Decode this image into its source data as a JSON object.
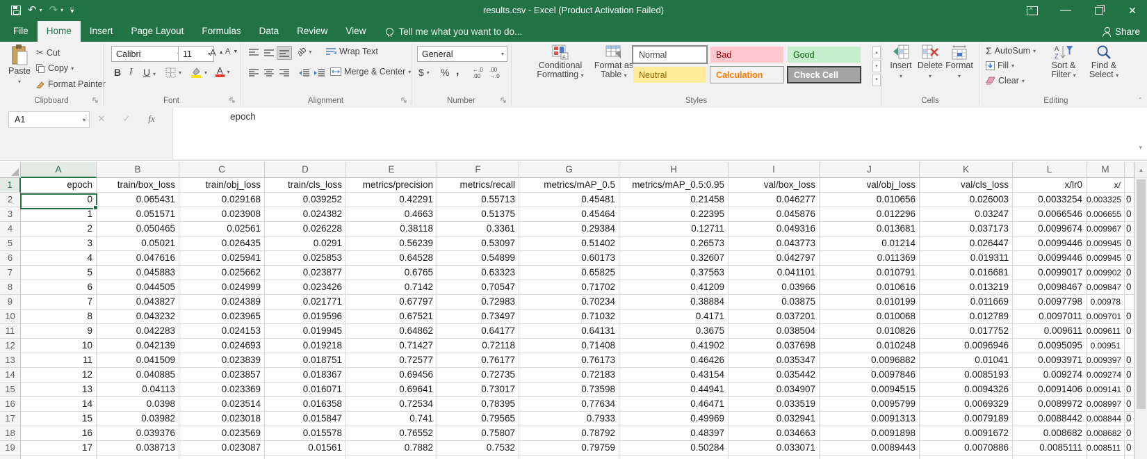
{
  "titlebar": {
    "title": "results.csv - Excel (Product Activation Failed)"
  },
  "tabs": [
    "File",
    "Home",
    "Insert",
    "Page Layout",
    "Formulas",
    "Data",
    "Review",
    "View"
  ],
  "active_tab": "Home",
  "tell_me": "Tell me what you want to do...",
  "share_label": "Share",
  "ribbon": {
    "clipboard": {
      "label": "Clipboard",
      "paste": "Paste",
      "cut": "Cut",
      "copy": "Copy",
      "format_painter": "Format Painter"
    },
    "font": {
      "label": "Font",
      "family": "Calibri",
      "size": "11",
      "bold": "B",
      "italic": "I",
      "underline": "U"
    },
    "alignment": {
      "label": "Alignment",
      "wrap_text": "Wrap Text",
      "merge_center": "Merge & Center"
    },
    "number": {
      "label": "Number",
      "format": "General",
      "currency": "$",
      "percent": "%",
      "comma": ","
    },
    "styles": {
      "label": "Styles",
      "conditional_line1": "Conditional",
      "conditional_line2": "Formatting",
      "format_table_line1": "Format as",
      "format_table_line2": "Table",
      "gallery": [
        {
          "label": "Normal",
          "bg": "#ffffff",
          "fg": "#444444",
          "border": "#8a8a8a",
          "bold": false
        },
        {
          "label": "Bad",
          "bg": "#FFC7CE",
          "fg": "#9C0006",
          "border": "#f1f1f1",
          "bold": false
        },
        {
          "label": "Good",
          "bg": "#C6EFCE",
          "fg": "#006100",
          "border": "#f1f1f1",
          "bold": false
        },
        {
          "label": "Neutral",
          "bg": "#FFEB9C",
          "fg": "#9C6500",
          "border": "#f1f1f1",
          "bold": false
        },
        {
          "label": "Calculation",
          "bg": "#F2F2F2",
          "fg": "#FA7D00",
          "border": "#9a9a9a",
          "bold": true
        },
        {
          "label": "Check Cell",
          "bg": "#A5A5A5",
          "fg": "#FFFFFF",
          "border": "#3f3f3f",
          "bold": true
        }
      ]
    },
    "cells": {
      "label": "Cells",
      "insert": "Insert",
      "delete": "Delete",
      "format": "Format"
    },
    "editing": {
      "label": "Editing",
      "autosum": "AutoSum",
      "fill": "Fill",
      "clear": "Clear",
      "sort_line1": "Sort &",
      "sort_line2": "Filter",
      "find_line1": "Find &",
      "find_line2": "Select"
    }
  },
  "formula_bar": {
    "name_box": "A1",
    "content": "epoch"
  },
  "colors": {
    "excel_green": "#217346"
  },
  "sheet": {
    "selected_cell": "A1",
    "col_letters": [
      "A",
      "B",
      "C",
      "D",
      "E",
      "F",
      "G",
      "H",
      "I",
      "J",
      "K",
      "L",
      "M"
    ],
    "header_row": [
      "epoch",
      "train/box_loss",
      "train/obj_loss",
      "train/cls_loss",
      "metrics/precision",
      "metrics/recall",
      "metrics/mAP_0.5",
      "metrics/mAP_0.5:0.95",
      "val/box_loss",
      "val/obj_loss",
      "val/cls_loss",
      "x/lr0",
      "x/"
    ],
    "rows": [
      [
        "0",
        "0.065431",
        "0.029168",
        "0.039252",
        "0.42291",
        "0.55713",
        "0.45481",
        "0.21458",
        "0.046277",
        "0.010656",
        "0.026003",
        "0.0033254",
        "0.003325",
        "0"
      ],
      [
        "1",
        "0.051571",
        "0.023908",
        "0.024382",
        "0.4663",
        "0.51375",
        "0.45464",
        "0.22395",
        "0.045876",
        "0.012296",
        "0.03247",
        "0.0066546",
        "0.006655",
        "0"
      ],
      [
        "2",
        "0.050465",
        "0.02561",
        "0.026228",
        "0.38118",
        "0.3361",
        "0.29384",
        "0.12711",
        "0.049316",
        "0.013681",
        "0.037173",
        "0.0099674",
        "0.009967",
        "0"
      ],
      [
        "3",
        "0.05021",
        "0.026435",
        "0.0291",
        "0.56239",
        "0.53097",
        "0.51402",
        "0.26573",
        "0.043773",
        "0.01214",
        "0.026447",
        "0.0099446",
        "0.009945",
        "0"
      ],
      [
        "4",
        "0.047616",
        "0.025941",
        "0.025853",
        "0.64528",
        "0.54899",
        "0.60173",
        "0.32607",
        "0.042797",
        "0.011369",
        "0.019311",
        "0.0099446",
        "0.009945",
        "0"
      ],
      [
        "5",
        "0.045883",
        "0.025662",
        "0.023877",
        "0.6765",
        "0.63323",
        "0.65825",
        "0.37563",
        "0.041101",
        "0.010791",
        "0.016681",
        "0.0099017",
        "0.009902",
        "0"
      ],
      [
        "6",
        "0.044505",
        "0.024999",
        "0.023426",
        "0.7142",
        "0.70547",
        "0.71702",
        "0.41209",
        "0.03966",
        "0.010616",
        "0.013219",
        "0.0098467",
        "0.009847",
        "0"
      ],
      [
        "7",
        "0.043827",
        "0.024389",
        "0.021771",
        "0.67797",
        "0.72983",
        "0.70234",
        "0.38884",
        "0.03875",
        "0.010199",
        "0.011669",
        "0.0097798",
        "0.00978",
        ""
      ],
      [
        "8",
        "0.043232",
        "0.023965",
        "0.019596",
        "0.67521",
        "0.73497",
        "0.71032",
        "0.4171",
        "0.037201",
        "0.010068",
        "0.012789",
        "0.0097011",
        "0.009701",
        "0"
      ],
      [
        "9",
        "0.042283",
        "0.024153",
        "0.019945",
        "0.64862",
        "0.64177",
        "0.64131",
        "0.3675",
        "0.038504",
        "0.010826",
        "0.017752",
        "0.009611",
        "0.009611",
        "0"
      ],
      [
        "10",
        "0.042139",
        "0.024693",
        "0.019218",
        "0.71427",
        "0.72118",
        "0.71408",
        "0.41902",
        "0.037698",
        "0.010248",
        "0.0096946",
        "0.0095095",
        "0.00951",
        ""
      ],
      [
        "11",
        "0.041509",
        "0.023839",
        "0.018751",
        "0.72577",
        "0.76177",
        "0.76173",
        "0.46426",
        "0.035347",
        "0.0096882",
        "0.01041",
        "0.0093971",
        "0.009397",
        "0"
      ],
      [
        "12",
        "0.040885",
        "0.023857",
        "0.018367",
        "0.69456",
        "0.72735",
        "0.72183",
        "0.43154",
        "0.035442",
        "0.0097846",
        "0.0085193",
        "0.009274",
        "0.009274",
        "0"
      ],
      [
        "13",
        "0.04113",
        "0.023369",
        "0.016071",
        "0.69641",
        "0.73017",
        "0.73598",
        "0.44941",
        "0.034907",
        "0.0094515",
        "0.0094326",
        "0.0091406",
        "0.009141",
        "0"
      ],
      [
        "14",
        "0.0398",
        "0.023514",
        "0.016358",
        "0.72534",
        "0.78395",
        "0.77634",
        "0.46471",
        "0.033519",
        "0.0095799",
        "0.0069329",
        "0.0089972",
        "0.008997",
        "0"
      ],
      [
        "15",
        "0.03982",
        "0.023018",
        "0.015847",
        "0.741",
        "0.79565",
        "0.7933",
        "0.49969",
        "0.032941",
        "0.0091313",
        "0.0079189",
        "0.0088442",
        "0.008844",
        "0"
      ],
      [
        "16",
        "0.039376",
        "0.023569",
        "0.015578",
        "0.76552",
        "0.75807",
        "0.78792",
        "0.48397",
        "0.034663",
        "0.0091898",
        "0.0091672",
        "0.008682",
        "0.008682",
        "0"
      ],
      [
        "17",
        "0.038713",
        "0.023087",
        "0.01561",
        "0.7882",
        "0.7532",
        "0.79759",
        "0.50284",
        "0.033071",
        "0.0089443",
        "0.0070886",
        "0.0085111",
        "0.008511",
        "0"
      ]
    ]
  }
}
